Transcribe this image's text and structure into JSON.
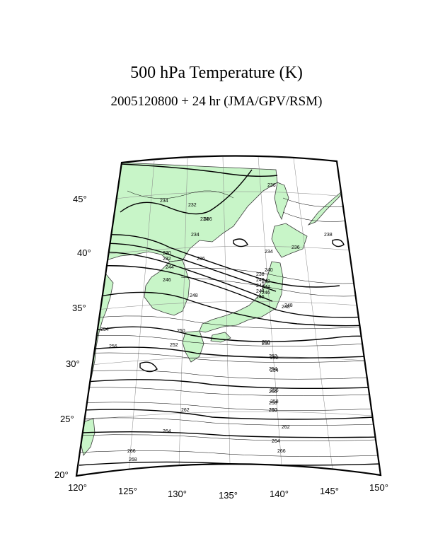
{
  "title": "500 hPa Temperature (K)",
  "subtitle": "2005120800 + 24 hr (JMA/GPV/RSM)",
  "colors": {
    "land": "#c8f5c8",
    "coast": "#3a3a3a",
    "contour": "#000000",
    "grid": "#888888"
  },
  "axes": {
    "lat_labels": [
      "45°",
      "40°",
      "35°",
      "30°",
      "25°",
      "20°"
    ],
    "lon_labels": [
      "120°",
      "125°",
      "130°",
      "135°",
      "140°",
      "145°",
      "150°"
    ]
  },
  "contour_labels": [
    "234",
    "232",
    "234",
    "230",
    "232",
    "236",
    "234",
    "244",
    "236",
    "246",
    "238",
    "240",
    "242",
    "244",
    "246",
    "248",
    "250",
    "252",
    "254",
    "256",
    "248",
    "250",
    "252",
    "254",
    "256",
    "258",
    "260",
    "262",
    "264",
    "266",
    "268",
    "236",
    "234",
    "236",
    "238",
    "240",
    "242",
    "244",
    "246",
    "248",
    "250",
    "252",
    "254",
    "256",
    "258",
    "260",
    "262",
    "264",
    "266"
  ]
}
